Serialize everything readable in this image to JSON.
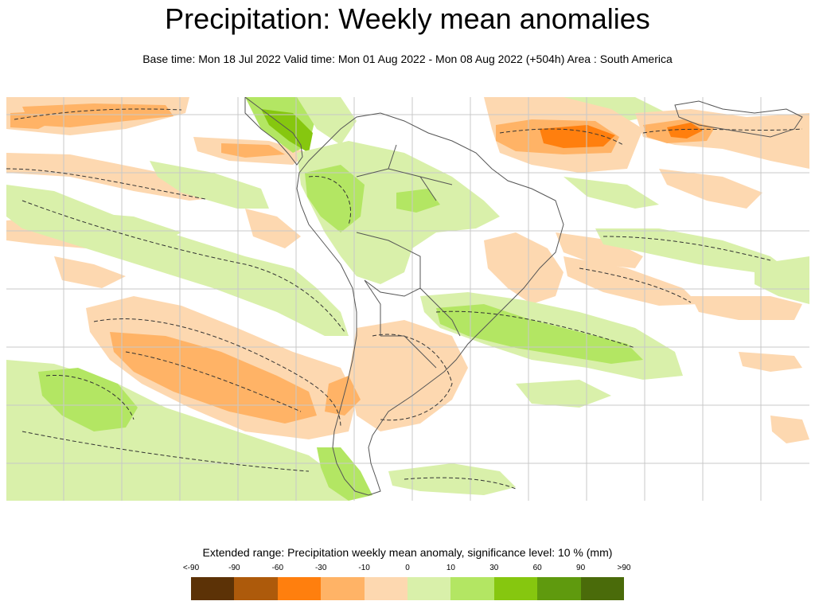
{
  "header": {
    "title": "Precipitation: Weekly mean anomalies",
    "subtitle": "Base time: Mon 18 Jul 2022 Valid time: Mon 01 Aug 2022 - Mon 08 Aug 2022 (+504h) Area : South America"
  },
  "legend": {
    "title": "Extended range: Precipitation weekly mean anomaly, significance level: 10 % (mm)",
    "ticks": [
      "<-90",
      "-90",
      "-60",
      "-30",
      "-10",
      "0",
      "10",
      "30",
      "60",
      "90",
      ">90"
    ],
    "colors": [
      "#5c3206",
      "#ad5a0b",
      "#ff7f0e",
      "#ffb366",
      "#fdd8b0",
      "#d9f0aa",
      "#b3e663",
      "#86c70f",
      "#5f9a0e",
      "#4a6b0a"
    ]
  },
  "map": {
    "area": "South America",
    "palette": {
      "orange_dark": "#ff7f0e",
      "orange": "#ffb366",
      "orange_light": "#fdd8b0",
      "green_light": "#d9f0aa",
      "green": "#b3e663",
      "green_dark": "#86c70f",
      "grid": "#c8c8c8",
      "coast": "#555555",
      "significance_contour": "#333333"
    }
  }
}
